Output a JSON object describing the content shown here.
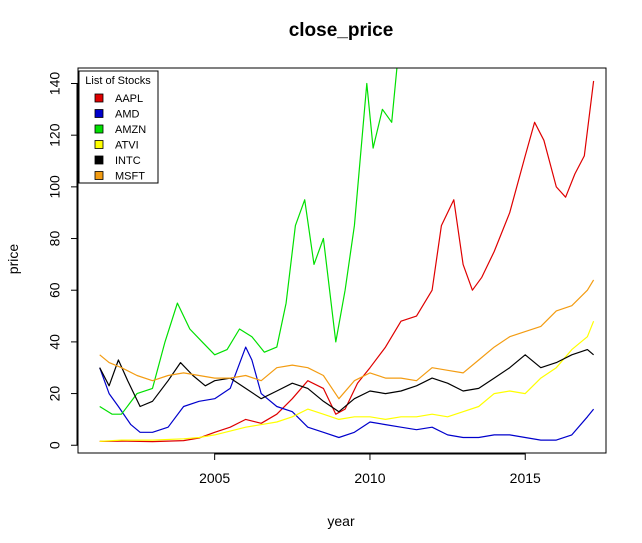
{
  "chart_data": {
    "type": "line",
    "title": "close_price",
    "xlabel": "year",
    "ylabel": "price",
    "xlim": [
      2000.6,
      2017.6
    ],
    "ylim": [
      -3,
      146
    ],
    "x_ticks": [
      2005,
      2010,
      2015
    ],
    "x_tick_labels": [
      "2005",
      "2010",
      "2015"
    ],
    "y_ticks": [
      0,
      20,
      40,
      60,
      80,
      100,
      120,
      140
    ],
    "y_tick_labels": [
      "0",
      "20",
      "40",
      "60",
      "80",
      "100",
      "120",
      "140"
    ],
    "grid": false,
    "legend": {
      "title": "List of Stocks",
      "position": "top-left"
    },
    "series": [
      {
        "name": "AAPL",
        "color": "#DF0000",
        "x": [
          2001.3,
          2002.0,
          2003.0,
          2004.0,
          2004.5,
          2005.0,
          2005.5,
          2006.0,
          2006.5,
          2007.0,
          2007.5,
          2008.0,
          2008.5,
          2008.9,
          2009.2,
          2009.6,
          2010.0,
          2010.5,
          2011.0,
          2011.5,
          2012.0,
          2012.3,
          2012.7,
          2013.0,
          2013.3,
          2013.6,
          2014.0,
          2014.5,
          2015.0,
          2015.3,
          2015.6,
          2016.0,
          2016.3,
          2016.6,
          2016.9,
          2017.2
        ],
        "y": [
          1.5,
          1.6,
          1.4,
          1.8,
          2.8,
          5,
          7,
          10,
          8.5,
          12,
          18,
          25,
          22,
          12,
          14,
          24,
          30,
          38,
          48,
          50,
          60,
          85,
          95,
          70,
          60,
          65,
          75,
          90,
          112,
          125,
          118,
          100,
          96,
          105,
          112,
          141
        ]
      },
      {
        "name": "AMD",
        "color": "#0000CC",
        "x": [
          2001.3,
          2001.6,
          2001.9,
          2002.3,
          2002.6,
          2003.0,
          2003.5,
          2004.0,
          2004.5,
          2005.0,
          2005.5,
          2006.0,
          2006.2,
          2006.5,
          2007.0,
          2007.5,
          2008.0,
          2008.5,
          2009.0,
          2009.5,
          2010.0,
          2010.5,
          2011.0,
          2011.5,
          2012.0,
          2012.5,
          2013.0,
          2013.5,
          2014.0,
          2014.5,
          2015.0,
          2015.5,
          2016.0,
          2016.5,
          2017.0,
          2017.2
        ],
        "y": [
          30,
          20,
          15,
          8,
          5,
          5,
          7,
          15,
          17,
          18,
          22,
          38,
          33,
          20,
          15,
          13,
          7,
          5,
          3,
          5,
          9,
          8,
          7,
          6,
          7,
          4,
          3,
          3,
          4,
          4,
          3,
          2,
          2,
          4,
          11,
          14
        ]
      },
      {
        "name": "AMZN",
        "color": "#00E000",
        "x": [
          2001.3,
          2001.7,
          2002.0,
          2002.5,
          2003.0,
          2003.4,
          2003.8,
          2004.2,
          2004.6,
          2005.0,
          2005.4,
          2005.8,
          2006.2,
          2006.6,
          2007.0,
          2007.3,
          2007.6,
          2007.9,
          2008.2,
          2008.5,
          2008.9,
          2009.2,
          2009.5,
          2009.9,
          2010.1,
          2010.4,
          2010.7,
          2010.9
        ],
        "y": [
          15,
          12,
          12,
          20,
          22,
          40,
          55,
          45,
          40,
          35,
          37,
          45,
          42,
          36,
          38,
          55,
          85,
          95,
          70,
          80,
          40,
          60,
          85,
          140,
          115,
          130,
          125,
          150
        ]
      },
      {
        "name": "ATVI",
        "color": "#FFFF00",
        "x": [
          2001.3,
          2002.0,
          2003.0,
          2004.0,
          2004.5,
          2005.0,
          2006.0,
          2007.0,
          2007.5,
          2008.0,
          2008.5,
          2009.0,
          2009.5,
          2010.0,
          2010.5,
          2011.0,
          2011.5,
          2012.0,
          2012.5,
          2013.0,
          2013.5,
          2014.0,
          2014.5,
          2015.0,
          2015.5,
          2016.0,
          2016.5,
          2017.0,
          2017.2
        ],
        "y": [
          1.5,
          2,
          2,
          2.5,
          3,
          4,
          7,
          9,
          11,
          14,
          12,
          10,
          11,
          11,
          10,
          11,
          11,
          12,
          11,
          13,
          15,
          20,
          21,
          20,
          26,
          30,
          37,
          42,
          48
        ]
      },
      {
        "name": "INTC",
        "color": "#000000",
        "x": [
          2001.3,
          2001.6,
          2001.9,
          2002.2,
          2002.6,
          2003.0,
          2003.5,
          2003.9,
          2004.3,
          2004.7,
          2005.0,
          2005.5,
          2006.0,
          2006.5,
          2007.0,
          2007.5,
          2008.0,
          2008.5,
          2009.0,
          2009.5,
          2010.0,
          2010.5,
          2011.0,
          2011.5,
          2012.0,
          2012.5,
          2013.0,
          2013.5,
          2014.0,
          2014.5,
          2015.0,
          2015.5,
          2016.0,
          2016.5,
          2017.0,
          2017.2
        ],
        "y": [
          30,
          23,
          33,
          25,
          15,
          17,
          25,
          32,
          27,
          23,
          25,
          26,
          22,
          18,
          21,
          24,
          22,
          17,
          13,
          18,
          21,
          20,
          21,
          23,
          26,
          24,
          21,
          22,
          26,
          30,
          35,
          30,
          32,
          35,
          37,
          35
        ]
      },
      {
        "name": "MSFT",
        "color": "#F39C12",
        "x": [
          2001.3,
          2001.6,
          2002.0,
          2002.5,
          2003.0,
          2003.5,
          2004.0,
          2004.5,
          2005.0,
          2005.5,
          2006.0,
          2006.5,
          2007.0,
          2007.5,
          2008.0,
          2008.5,
          2009.0,
          2009.5,
          2010.0,
          2010.5,
          2011.0,
          2011.5,
          2012.0,
          2012.5,
          2013.0,
          2013.5,
          2014.0,
          2014.5,
          2015.0,
          2015.5,
          2016.0,
          2016.5,
          2017.0,
          2017.2
        ],
        "y": [
          35,
          32,
          30,
          27,
          25,
          27,
          28,
          27,
          26,
          26,
          27,
          25,
          30,
          31,
          30,
          27,
          18,
          25,
          28,
          26,
          26,
          25,
          30,
          29,
          28,
          33,
          38,
          42,
          44,
          46,
          52,
          54,
          60,
          64
        ]
      }
    ]
  }
}
